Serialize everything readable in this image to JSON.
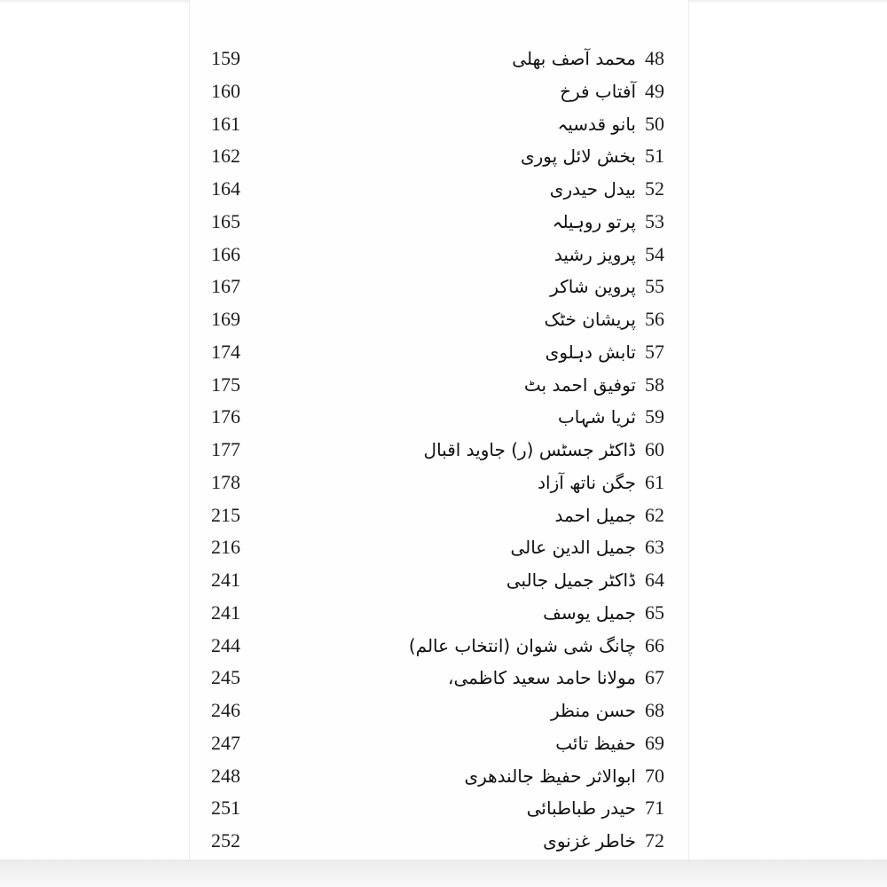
{
  "colors": {
    "page_background": "#ffffff",
    "scan_background": "#fffefe",
    "text": "#1d1d1d",
    "edge_shade": "#eaeaea"
  },
  "toc": {
    "rows": [
      {
        "serial": "48",
        "name_urdu": "محمد آصف بھلی",
        "page": "159"
      },
      {
        "serial": "49",
        "name_urdu": "آفتاب فرخ",
        "page": "160"
      },
      {
        "serial": "50",
        "name_urdu": "بانو قدسیہ",
        "page": "161"
      },
      {
        "serial": "51",
        "name_urdu": "بخش لائل پوری",
        "page": "162"
      },
      {
        "serial": "52",
        "name_urdu": "بیدل حیدری",
        "page": "164"
      },
      {
        "serial": "53",
        "name_urdu": "پرتو روہیلہ",
        "page": "165"
      },
      {
        "serial": "54",
        "name_urdu": "پرویز رشید",
        "page": "166"
      },
      {
        "serial": "55",
        "name_urdu": "پروین شاکر",
        "page": "167"
      },
      {
        "serial": "56",
        "name_urdu": "پریشان خٹک",
        "page": "169"
      },
      {
        "serial": "57",
        "name_urdu": "تابش دہلوی",
        "page": "174"
      },
      {
        "serial": "58",
        "name_urdu": "توفیق احمد بٹ",
        "page": "175"
      },
      {
        "serial": "59",
        "name_urdu": "ثریا شہاب",
        "page": "176"
      },
      {
        "serial": "60",
        "name_urdu": "ڈاکٹر جسٹس (ر) جاوید اقبال",
        "page": "177"
      },
      {
        "serial": "61",
        "name_urdu": "جگن ناتھ آزاد",
        "page": "178"
      },
      {
        "serial": "62",
        "name_urdu": "جمیل احمد",
        "page": "215"
      },
      {
        "serial": "63",
        "name_urdu": "جمیل الدین عالی",
        "page": "216"
      },
      {
        "serial": "64",
        "name_urdu": "ڈاکٹر جمیل جالبی",
        "page": "241"
      },
      {
        "serial": "65",
        "name_urdu": "جمیل یوسف",
        "page": "241"
      },
      {
        "serial": "66",
        "name_urdu": "چانگ شی شوان (انتخاب عالم)",
        "page": "244"
      },
      {
        "serial": "67",
        "name_urdu": "مولانا حامد سعید کاظمی،",
        "page": "245"
      },
      {
        "serial": "68",
        "name_urdu": "حسن منظر",
        "page": "246"
      },
      {
        "serial": "69",
        "name_urdu": "حفیظ تائب",
        "page": "247"
      },
      {
        "serial": "70",
        "name_urdu": "ابوالاثر حفیظ جالندھری",
        "page": "248"
      },
      {
        "serial": "71",
        "name_urdu": "حیدر طباطبائی",
        "page": "251"
      },
      {
        "serial": "72",
        "name_urdu": "خاطر غزنوی",
        "page": "252"
      }
    ]
  }
}
